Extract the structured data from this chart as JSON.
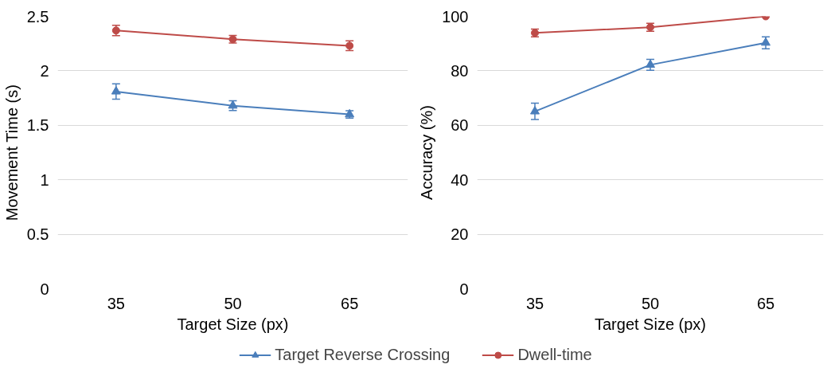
{
  "chart_data": [
    {
      "type": "line",
      "xlabel": "Target Size (px)",
      "ylabel": "Movement Time (s)",
      "categories": [
        "35",
        "50",
        "65"
      ],
      "ylim": [
        0,
        2.5
      ],
      "yticks": [
        0,
        0.5,
        1,
        1.5,
        2,
        2.5
      ],
      "grid": "y",
      "legend": "bottom",
      "series": [
        {
          "name": "Target Reverse Crossing",
          "color": "#4a7ebb",
          "marker": "triangle",
          "values": [
            1.81,
            1.68,
            1.6
          ],
          "errors": [
            0.07,
            0.045,
            0.033
          ]
        },
        {
          "name": "Dwell-time",
          "color": "#be4b48",
          "marker": "circle",
          "values": [
            2.37,
            2.29,
            2.23
          ],
          "errors": [
            0.048,
            0.035,
            0.045
          ]
        }
      ]
    },
    {
      "type": "line",
      "xlabel": "Target Size (px)",
      "ylabel": "Accuracy (%)",
      "categories": [
        "35",
        "50",
        "65"
      ],
      "ylim": [
        0,
        100
      ],
      "yticks": [
        0,
        20,
        40,
        60,
        80,
        100
      ],
      "grid": "y",
      "series": [
        {
          "color": "#4a7ebb",
          "marker": "triangle",
          "values": [
            65.1,
            82.2,
            90.3
          ],
          "errors": [
            3,
            2,
            2.2
          ]
        },
        {
          "color": "#be4b48",
          "marker": "circle",
          "values": [
            93.9,
            96.0,
            100
          ],
          "errors": [
            1.45,
            1.45,
            null
          ]
        }
      ]
    }
  ]
}
